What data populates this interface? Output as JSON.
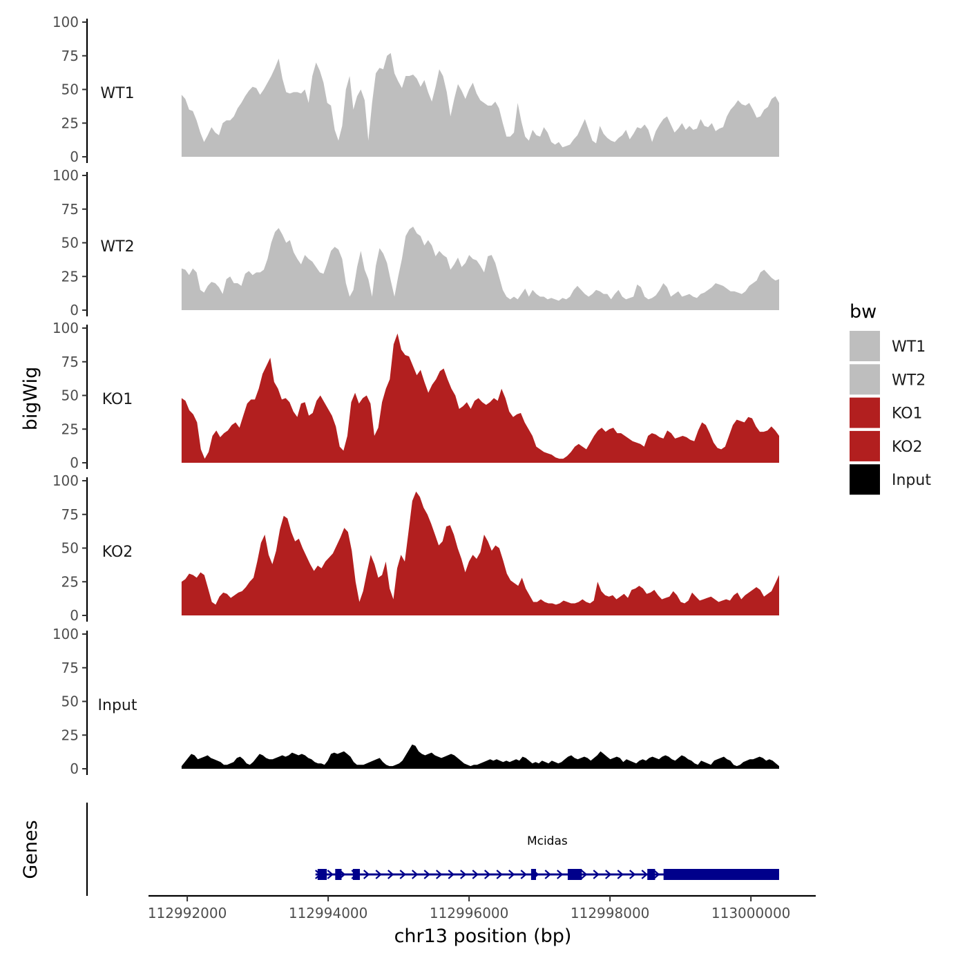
{
  "chart_data": {
    "type": "area",
    "y_axis_label": "bigWig",
    "genes_axis_label": "Genes",
    "x_axis_label": "chr13 position (bp)",
    "x_range": [
      112991450,
      113000920
    ],
    "data_x_range": [
      112991920,
      113000400
    ],
    "x_ticks": [
      112992000,
      112994000,
      112996000,
      112998000,
      113000000
    ],
    "x_tick_labels": [
      "112992000",
      "112994000",
      "112996000",
      "112998000",
      "113000000"
    ],
    "ylim": [
      0,
      100
    ],
    "y_ticks": [
      0,
      25,
      50,
      75,
      100
    ],
    "y_tick_labels": [
      "0",
      "25",
      "50",
      "75",
      "100"
    ],
    "legend": {
      "title": "bw",
      "position": "right",
      "entries": [
        {
          "label": "WT1",
          "color": "#bebebe"
        },
        {
          "label": "WT2",
          "color": "#bebebe"
        },
        {
          "label": "KO1",
          "color": "#b21f1f"
        },
        {
          "label": "KO2",
          "color": "#b21f1f"
        },
        {
          "label": "Input",
          "color": "#000000"
        }
      ]
    },
    "series": [
      {
        "name": "WT1",
        "color": "#bebebe",
        "values": [
          46,
          43,
          35,
          34,
          27,
          18,
          11,
          16,
          22,
          18,
          16,
          25,
          27,
          27,
          30,
          36,
          40,
          45,
          49,
          52,
          51,
          46,
          50,
          55,
          60,
          66,
          73,
          58,
          48,
          47,
          48,
          48,
          47,
          50,
          40,
          60,
          70,
          64,
          55,
          40,
          38,
          20,
          12,
          23,
          50,
          60,
          35,
          45,
          50,
          42,
          12,
          40,
          62,
          66,
          65,
          75,
          77,
          62,
          56,
          51,
          60,
          60,
          61,
          58,
          52,
          57,
          48,
          41,
          52,
          65,
          60,
          48,
          30,
          43,
          54,
          49,
          43,
          50,
          55,
          47,
          42,
          40,
          38,
          38,
          41,
          36,
          25,
          15,
          15,
          18,
          40,
          26,
          15,
          12,
          20,
          16,
          15,
          22,
          18,
          11,
          9,
          11,
          7,
          8,
          9,
          13,
          16,
          22,
          28,
          20,
          12,
          10,
          23,
          17,
          14,
          12,
          11,
          14,
          16,
          20,
          13,
          17,
          22,
          21,
          24,
          20,
          11,
          19,
          24,
          28,
          30,
          24,
          18,
          21,
          25,
          20,
          23,
          20,
          21,
          28,
          23,
          22,
          25,
          19,
          21,
          22,
          30,
          35,
          38,
          42,
          39,
          38,
          40,
          35,
          29,
          30,
          35,
          37,
          43,
          45,
          40
        ]
      },
      {
        "name": "WT2",
        "color": "#bebebe",
        "values": [
          31,
          30,
          26,
          31,
          28,
          15,
          13,
          18,
          21,
          20,
          17,
          12,
          23,
          25,
          20,
          20,
          18,
          27,
          29,
          26,
          28,
          28,
          30,
          38,
          50,
          58,
          61,
          56,
          50,
          52,
          43,
          38,
          34,
          41,
          38,
          36,
          32,
          28,
          27,
          35,
          44,
          47,
          45,
          38,
          20,
          10,
          15,
          32,
          44,
          30,
          23,
          10,
          33,
          46,
          42,
          35,
          22,
          10,
          25,
          38,
          55,
          60,
          62,
          57,
          55,
          48,
          52,
          48,
          40,
          44,
          41,
          39,
          30,
          34,
          39,
          32,
          35,
          41,
          38,
          37,
          33,
          28,
          40,
          41,
          35,
          25,
          15,
          10,
          8,
          10,
          8,
          12,
          16,
          10,
          15,
          12,
          10,
          10,
          8,
          9,
          8,
          7,
          9,
          8,
          10,
          15,
          18,
          15,
          12,
          10,
          12,
          15,
          14,
          12,
          12,
          8,
          12,
          15,
          10,
          8,
          9,
          10,
          19,
          17,
          10,
          8,
          9,
          11,
          15,
          20,
          17,
          10,
          12,
          14,
          10,
          11,
          12,
          10,
          9,
          12,
          13,
          15,
          17,
          20,
          19,
          18,
          16,
          14,
          14,
          13,
          12,
          14,
          18,
          20,
          22,
          28,
          30,
          27,
          24,
          22,
          23
        ]
      },
      {
        "name": "KO1",
        "color": "#b21f1f",
        "values": [
          48,
          46,
          39,
          36,
          30,
          10,
          3,
          8,
          20,
          24,
          19,
          22,
          24,
          28,
          30,
          26,
          35,
          44,
          47,
          47,
          55,
          66,
          72,
          78,
          60,
          55,
          47,
          48,
          45,
          38,
          34,
          44,
          45,
          35,
          37,
          46,
          50,
          45,
          40,
          35,
          27,
          12,
          9,
          20,
          45,
          52,
          44,
          48,
          50,
          44,
          20,
          26,
          45,
          55,
          62,
          88,
          96,
          84,
          80,
          79,
          72,
          65,
          69,
          60,
          52,
          58,
          62,
          68,
          70,
          62,
          55,
          50,
          40,
          42,
          45,
          40,
          46,
          48,
          45,
          43,
          45,
          48,
          46,
          55,
          48,
          38,
          34,
          36,
          37,
          30,
          25,
          20,
          12,
          10,
          8,
          7,
          6,
          4,
          3,
          3,
          5,
          8,
          12,
          14,
          12,
          10,
          15,
          20,
          24,
          26,
          23,
          25,
          26,
          22,
          22,
          20,
          18,
          16,
          15,
          14,
          12,
          20,
          22,
          21,
          19,
          18,
          24,
          22,
          18,
          19,
          20,
          19,
          17,
          16,
          24,
          30,
          28,
          22,
          15,
          11,
          10,
          12,
          20,
          28,
          32,
          31,
          30,
          34,
          33,
          27,
          23,
          23,
          24,
          27,
          24,
          20
        ]
      },
      {
        "name": "KO2",
        "color": "#b21f1f",
        "values": [
          25,
          27,
          31,
          30,
          28,
          32,
          30,
          20,
          10,
          8,
          14,
          17,
          16,
          13,
          15,
          17,
          18,
          21,
          25,
          28,
          40,
          54,
          60,
          45,
          38,
          48,
          64,
          74,
          72,
          62,
          55,
          57,
          50,
          44,
          38,
          33,
          37,
          35,
          40,
          43,
          46,
          52,
          58,
          65,
          62,
          48,
          25,
          10,
          18,
          32,
          45,
          38,
          28,
          30,
          40,
          20,
          12,
          35,
          45,
          40,
          62,
          85,
          92,
          88,
          80,
          75,
          68,
          60,
          52,
          55,
          66,
          67,
          60,
          50,
          42,
          32,
          40,
          45,
          42,
          47,
          60,
          55,
          48,
          52,
          50,
          41,
          31,
          26,
          24,
          22,
          28,
          20,
          15,
          10,
          10,
          12,
          10,
          9,
          9,
          8,
          9,
          11,
          10,
          9,
          9,
          10,
          12,
          10,
          9,
          11,
          25,
          18,
          15,
          14,
          15,
          12,
          14,
          16,
          13,
          19,
          20,
          22,
          20,
          16,
          17,
          19,
          15,
          12,
          13,
          14,
          18,
          15,
          10,
          9,
          11,
          17,
          14,
          11,
          12,
          13,
          14,
          12,
          10,
          11,
          12,
          11,
          15,
          17,
          12,
          15,
          17,
          19,
          21,
          19,
          14,
          16,
          18,
          24,
          30
        ]
      },
      {
        "name": "Input",
        "color": "#000000",
        "values": [
          2,
          5,
          8,
          11,
          10,
          7,
          8,
          9,
          10,
          8,
          7,
          6,
          5,
          3,
          3,
          4,
          5,
          8,
          9,
          7,
          4,
          3,
          5,
          8,
          11,
          10,
          8,
          7,
          7,
          8,
          9,
          10,
          9,
          10,
          12,
          11,
          10,
          11,
          10,
          8,
          7,
          5,
          4,
          4,
          3,
          6,
          11,
          12,
          11,
          12,
          13,
          11,
          9,
          5,
          3,
          3,
          3,
          4,
          5,
          6,
          7,
          8,
          5,
          3,
          2,
          2,
          3,
          4,
          6,
          10,
          14,
          18,
          17,
          13,
          11,
          10,
          11,
          12,
          10,
          9,
          8,
          9,
          10,
          11,
          10,
          8,
          6,
          4,
          3,
          2,
          3,
          3,
          4,
          5,
          6,
          7,
          6,
          7,
          6,
          5,
          6,
          5,
          6,
          7,
          6,
          9,
          8,
          6,
          4,
          5,
          4,
          6,
          5,
          4,
          6,
          5,
          4,
          5,
          7,
          9,
          10,
          8,
          7,
          8,
          9,
          8,
          6,
          8,
          10,
          13,
          11,
          9,
          7,
          8,
          9,
          8,
          5,
          7,
          6,
          5,
          4,
          6,
          7,
          6,
          8,
          9,
          8,
          7,
          9,
          10,
          9,
          7,
          6,
          8,
          10,
          9,
          7,
          6,
          4,
          3,
          6,
          5,
          4,
          3,
          6,
          7,
          8,
          9,
          7,
          6,
          3,
          2,
          3,
          5,
          6,
          7,
          7,
          8,
          9,
          8,
          6,
          7,
          6,
          4,
          2
        ]
      }
    ],
    "gene_track": {
      "gene_name": "Mcidas",
      "color": "#00008b",
      "strand": "+",
      "span": [
        112993820,
        113000400
      ],
      "exons": [
        [
          112993850,
          112993980
        ],
        [
          112994100,
          112994190
        ],
        [
          112994350,
          112994450
        ],
        [
          112996880,
          112996950
        ],
        [
          112997400,
          112997600
        ],
        [
          112998530,
          112998640
        ],
        [
          112998760,
          113000400
        ]
      ]
    }
  }
}
